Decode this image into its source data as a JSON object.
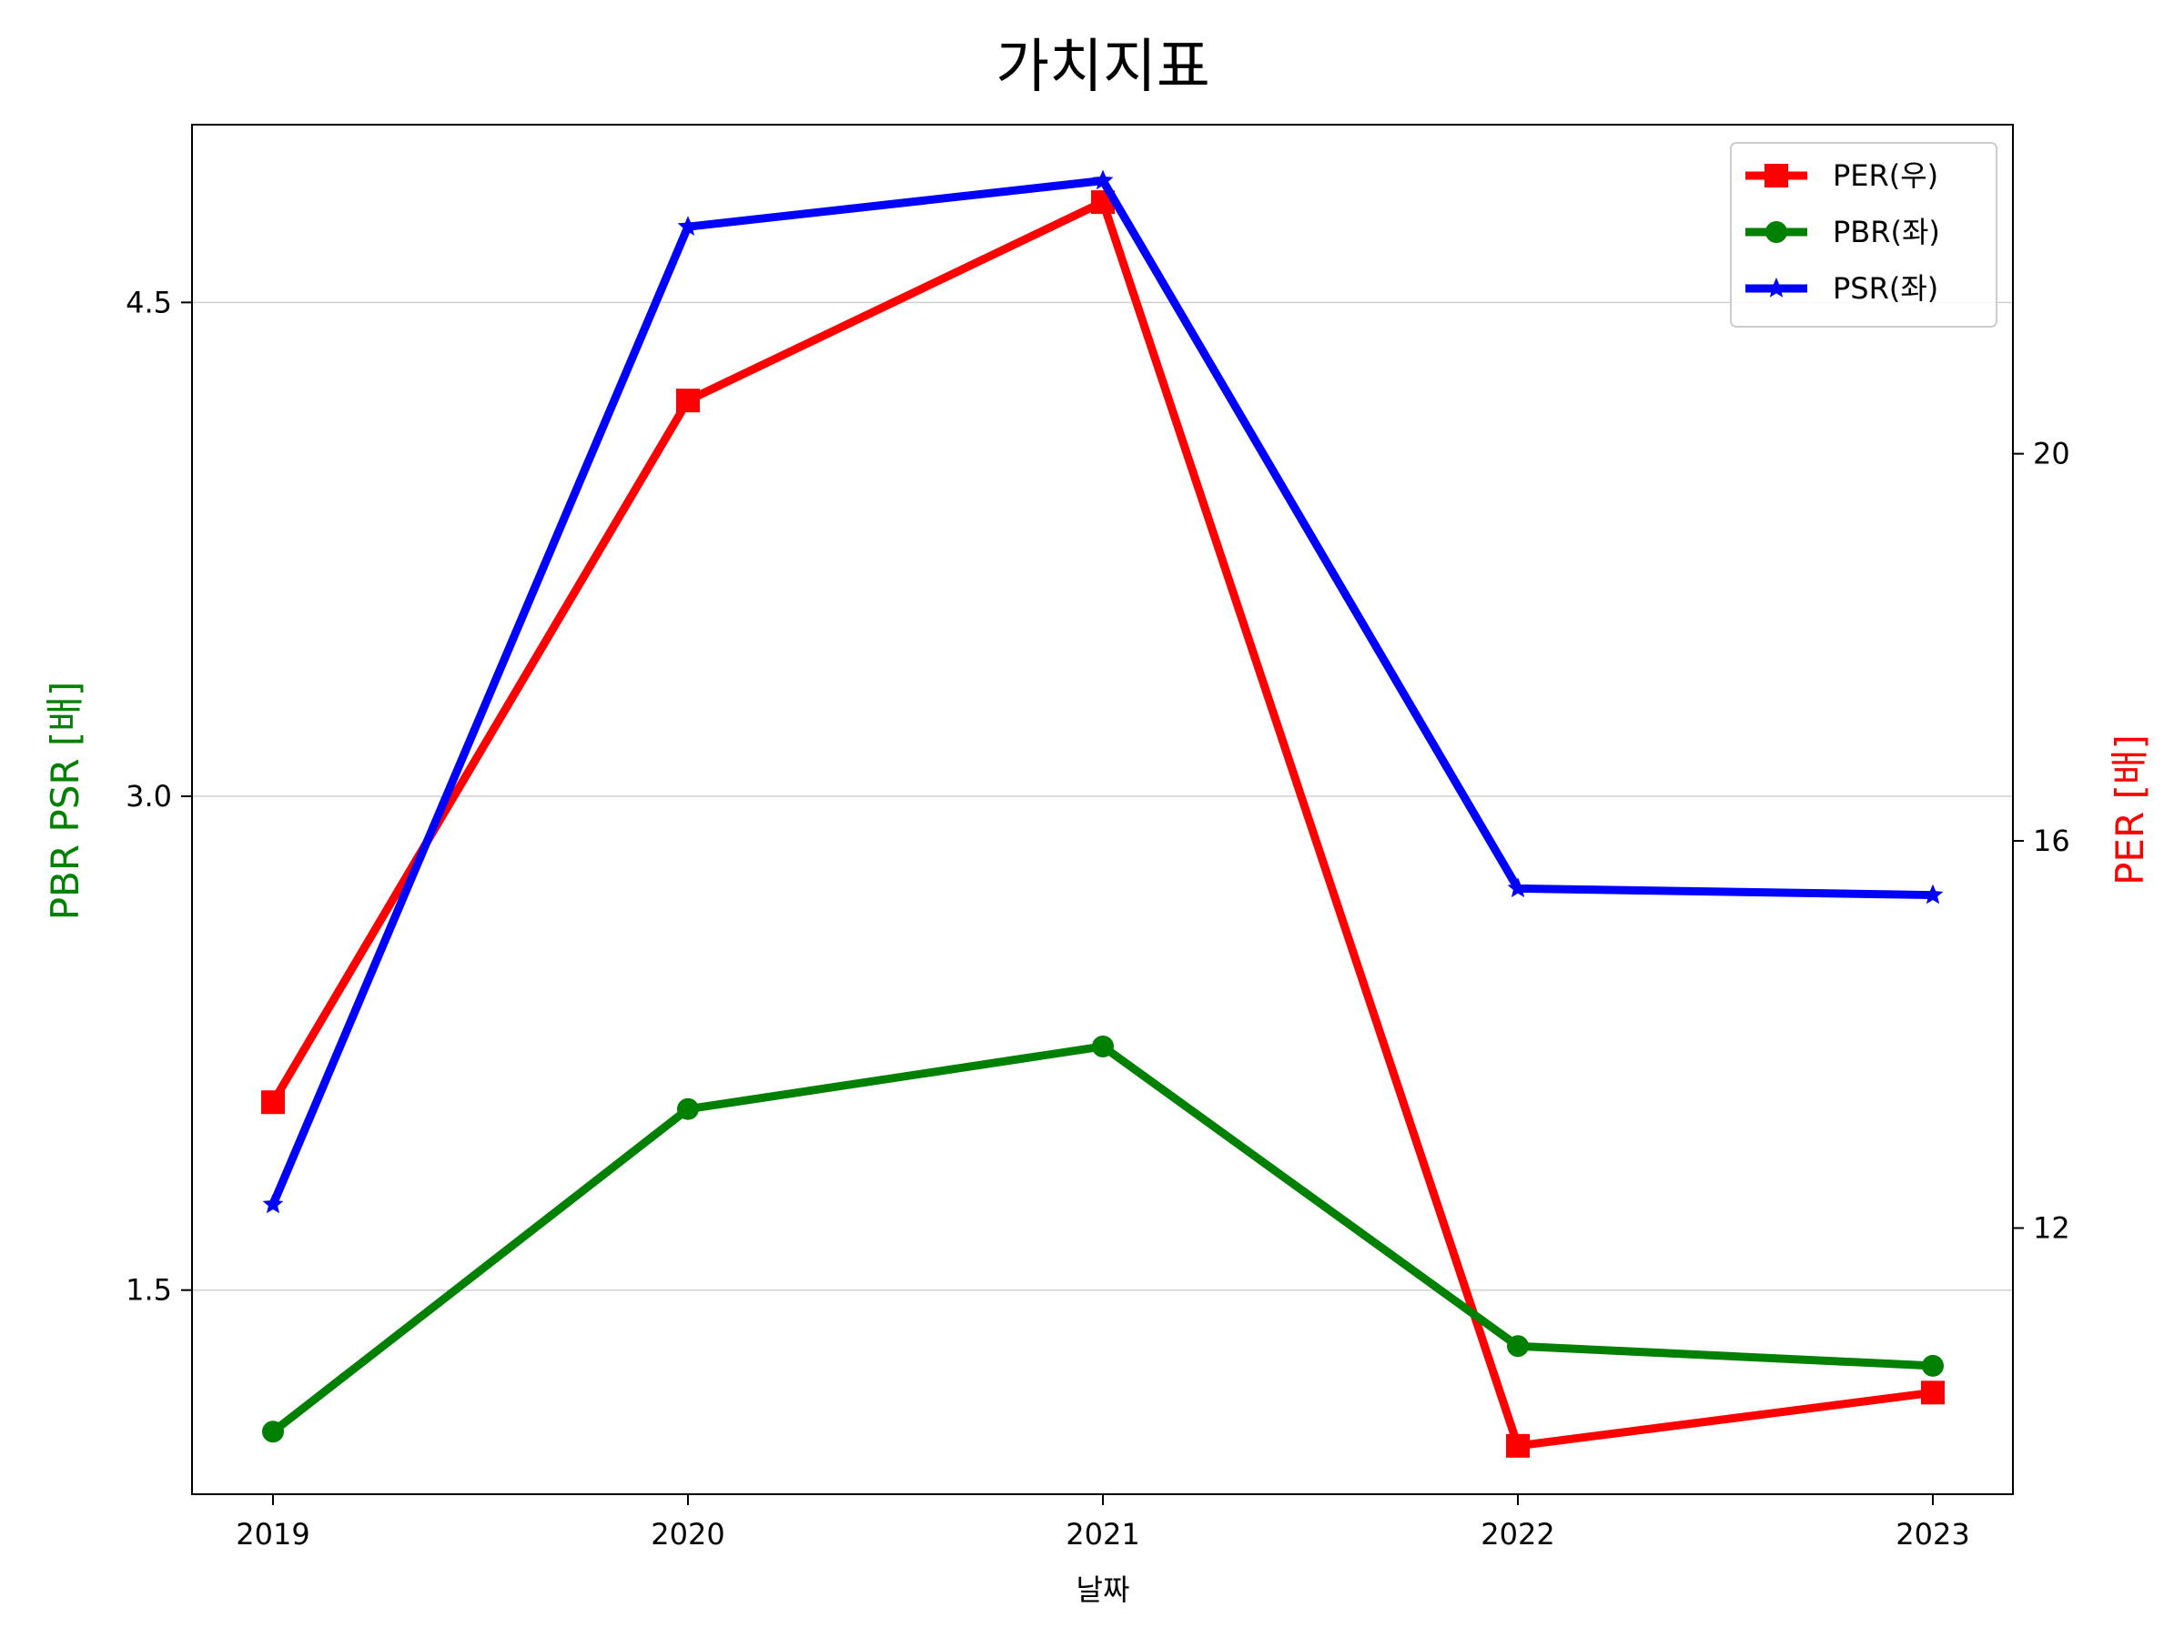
{
  "chart_data": {
    "type": "line",
    "title": "가치지표",
    "xlabel": "날짜",
    "ylabel_left": "PBR PSR [배]",
    "ylabel_right": "PER [배]",
    "categories": [
      "2019",
      "2020",
      "2021",
      "2022",
      "2023"
    ],
    "y_left": {
      "ticks": [
        1.5,
        3.0,
        4.5
      ],
      "tick_labels": [
        "1.5",
        "3.0",
        "4.5"
      ],
      "lim": [
        0.88,
        5.04
      ],
      "grid": true
    },
    "y_right": {
      "ticks": [
        12,
        16,
        20
      ],
      "tick_labels": [
        "12",
        "16",
        "20"
      ],
      "lim": [
        9.25,
        23.4
      ]
    },
    "legend_position": "top-right",
    "series": [
      {
        "name": "PER(우)",
        "axis": "right",
        "color": "#ff0000",
        "marker": "square",
        "values": [
          13.3,
          20.55,
          22.6,
          9.75,
          10.3
        ]
      },
      {
        "name": "PBR(좌)",
        "axis": "left",
        "color": "#008000",
        "marker": "circle",
        "values": [
          1.07,
          2.05,
          2.24,
          1.33,
          1.27
        ]
      },
      {
        "name": "PSR(좌)",
        "axis": "left",
        "color": "#0000ff",
        "marker": "star",
        "values": [
          1.76,
          4.73,
          4.87,
          2.72,
          2.7
        ]
      }
    ]
  }
}
